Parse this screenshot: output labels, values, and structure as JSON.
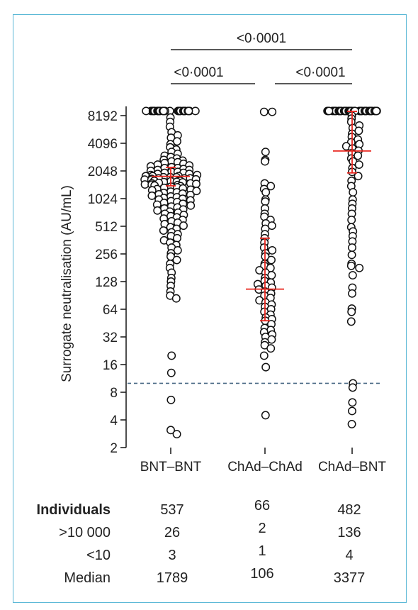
{
  "chart_data": {
    "type": "scatter",
    "ylabel": "Surrogate neutralisation (AU/mL)",
    "y_scale": "log2",
    "ylim": [
      2,
      11000
    ],
    "y_ticks": [
      2,
      4,
      8,
      16,
      32,
      64,
      128,
      256,
      512,
      1024,
      2048,
      4096,
      8192
    ],
    "categories": [
      "BNT–BNT",
      "ChAd–ChAd",
      "ChAd–BNT"
    ],
    "threshold": 10,
    "threshold_color": "#4a6a86",
    "summary": [
      {
        "category": "BNT–BNT",
        "median": 1789,
        "lower": 1410,
        "upper": 2240
      },
      {
        "category": "ChAd–ChAd",
        "median": 106,
        "lower": 48,
        "upper": 380
      },
      {
        "category": "ChAd–BNT",
        "median": 3377,
        "lower": 1950,
        "upper": 9100
      }
    ],
    "summary_color": "#e8241c",
    "comparisons": [
      {
        "from": "BNT–BNT",
        "to": "ChAd–BNT",
        "label": "<0·0001"
      },
      {
        "from": "BNT–BNT",
        "to": "ChAd–ChAd",
        "label": "<0·0001"
      },
      {
        "from": "ChAd–ChAd",
        "to": "ChAd–BNT",
        "label": "<0·0001"
      }
    ],
    "points": [
      {
        "category": "BNT–BNT",
        "values": [
          9200,
          9200,
          9200,
          9200,
          9200,
          9200,
          9200,
          9200,
          9200,
          9200,
          9200,
          9200,
          9200,
          9200,
          9200,
          9200,
          9200,
          9200,
          9200,
          9200,
          9200,
          9200,
          9200,
          9200,
          9200,
          9200,
          7800,
          7000,
          6200,
          5400,
          5000,
          4700,
          4300,
          4000,
          3700,
          3500,
          3300,
          3150,
          3000,
          2900,
          2800,
          2700,
          2650,
          2600,
          2550,
          2500,
          2450,
          2400,
          2350,
          2300,
          2250,
          2200,
          2200,
          2150,
          2100,
          2100,
          2050,
          2000,
          2000,
          1950,
          1950,
          1900,
          1900,
          1850,
          1850,
          1800,
          1800,
          1800,
          1750,
          1750,
          1750,
          1700,
          1700,
          1700,
          1680,
          1660,
          1650,
          1640,
          1620,
          1600,
          1600,
          1580,
          1560,
          1550,
          1540,
          1520,
          1500,
          1500,
          1480,
          1460,
          1450,
          1440,
          1420,
          1400,
          1380,
          1360,
          1340,
          1320,
          1300,
          1280,
          1260,
          1240,
          1220,
          1200,
          1180,
          1160,
          1140,
          1120,
          1100,
          1080,
          1060,
          1040,
          1020,
          1000,
          980,
          960,
          940,
          920,
          900,
          880,
          860,
          840,
          820,
          800,
          780,
          760,
          740,
          720,
          700,
          680,
          660,
          640,
          620,
          600,
          580,
          560,
          540,
          520,
          500,
          480,
          460,
          440,
          420,
          400,
          380,
          360,
          340,
          320,
          300,
          280,
          260,
          240,
          220,
          200,
          180,
          160,
          140,
          128,
          115,
          100,
          90,
          84,
          20,
          13,
          6.6,
          3.1,
          2.8
        ]
      },
      {
        "category": "ChAd–ChAd",
        "values": [
          9000,
          9000,
          3300,
          2700,
          2600,
          1500,
          1400,
          1300,
          1200,
          1000,
          950,
          800,
          700,
          650,
          600,
          550,
          520,
          480,
          420,
          380,
          340,
          300,
          280,
          260,
          240,
          220,
          200,
          190,
          180,
          170,
          160,
          150,
          140,
          130,
          125,
          120,
          115,
          110,
          105,
          100,
          95,
          90,
          85,
          80,
          76,
          72,
          68,
          64,
          60,
          56,
          52,
          50,
          48,
          44,
          40,
          38,
          36,
          34,
          32,
          30,
          28,
          26,
          24,
          20,
          15,
          4.5
        ]
      },
      {
        "category": "ChAd–BNT",
        "values": [
          9200,
          9200,
          9200,
          9200,
          9200,
          9200,
          9200,
          9200,
          9200,
          9200,
          9200,
          9200,
          9200,
          9200,
          9200,
          9200,
          9200,
          9200,
          9200,
          9200,
          9200,
          9200,
          9200,
          9200,
          9200,
          9200,
          9200,
          9200,
          9200,
          9200,
          9200,
          9200,
          9200,
          9200,
          9200,
          9200,
          9200,
          9200,
          9200,
          9200,
          8200,
          7600,
          7000,
          6400,
          6000,
          5600,
          5200,
          4800,
          4500,
          4200,
          4000,
          3800,
          3600,
          3400,
          3200,
          3000,
          2800,
          2600,
          2400,
          2200,
          2000,
          1800,
          1600,
          1400,
          1200,
          1000,
          900,
          800,
          700,
          600,
          500,
          450,
          400,
          350,
          300,
          250,
          200,
          190,
          180,
          150,
          110,
          95,
          65,
          60,
          47,
          10,
          9,
          6.2,
          5,
          3.6
        ]
      }
    ]
  },
  "table": {
    "rows": [
      {
        "label": "Individuals",
        "bold": true,
        "values": [
          "537",
          "66",
          "482"
        ]
      },
      {
        "label": ">10 000",
        "bold": false,
        "values": [
          "26",
          "2",
          "136"
        ]
      },
      {
        "label": "<10",
        "bold": false,
        "values": [
          "3",
          "1",
          "4"
        ]
      },
      {
        "label": "Median",
        "bold": false,
        "values": [
          "1789",
          "106",
          "3377"
        ]
      }
    ]
  }
}
